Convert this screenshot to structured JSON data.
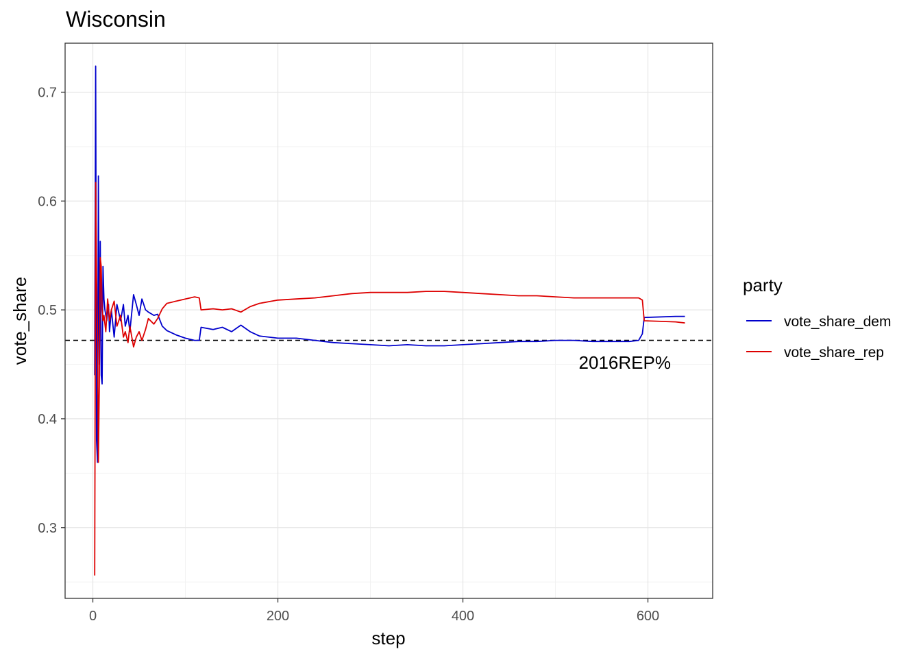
{
  "chart_data": {
    "type": "line",
    "title": "Wisconsin",
    "xlabel": "step",
    "ylabel": "vote_share",
    "xlim": [
      -30,
      670
    ],
    "ylim": [
      0.235,
      0.745
    ],
    "x_ticks": [
      0,
      200,
      400,
      600
    ],
    "y_ticks": [
      0.3,
      0.4,
      0.5,
      0.6,
      0.7
    ],
    "x_tick_labels": [
      "0",
      "200",
      "400",
      "600"
    ],
    "y_tick_labels": [
      "0.3",
      "0.4",
      "0.5",
      "0.6",
      "0.7"
    ],
    "grid": true,
    "legend": {
      "title": "party",
      "position": "right"
    },
    "reference_line": {
      "y": 0.472,
      "style": "dashed",
      "label": "2016REP%",
      "label_x": 575,
      "label_y": 0.446
    },
    "series": [
      {
        "name": "vote_share_dem",
        "color": "#0000CC",
        "points": [
          [
            2,
            0.44
          ],
          [
            3,
            0.724
          ],
          [
            4,
            0.38
          ],
          [
            5,
            0.36
          ],
          [
            6,
            0.623
          ],
          [
            7,
            0.45
          ],
          [
            8,
            0.563
          ],
          [
            9,
            0.44
          ],
          [
            10,
            0.432
          ],
          [
            11,
            0.54
          ],
          [
            12,
            0.51
          ],
          [
            13,
            0.5
          ],
          [
            15,
            0.49
          ],
          [
            17,
            0.505
          ],
          [
            18,
            0.48
          ],
          [
            20,
            0.5
          ],
          [
            23,
            0.475
          ],
          [
            26,
            0.505
          ],
          [
            30,
            0.49
          ],
          [
            33,
            0.505
          ],
          [
            35,
            0.485
          ],
          [
            38,
            0.495
          ],
          [
            40,
            0.48
          ],
          [
            44,
            0.514
          ],
          [
            47,
            0.505
          ],
          [
            50,
            0.495
          ],
          [
            53,
            0.51
          ],
          [
            57,
            0.5
          ],
          [
            60,
            0.498
          ],
          [
            66,
            0.495
          ],
          [
            70,
            0.496
          ],
          [
            75,
            0.485
          ],
          [
            80,
            0.481
          ],
          [
            90,
            0.477
          ],
          [
            100,
            0.474
          ],
          [
            110,
            0.472
          ],
          [
            115,
            0.472
          ],
          [
            117,
            0.484
          ],
          [
            130,
            0.482
          ],
          [
            140,
            0.484
          ],
          [
            150,
            0.48
          ],
          [
            160,
            0.486
          ],
          [
            170,
            0.48
          ],
          [
            180,
            0.476
          ],
          [
            200,
            0.474
          ],
          [
            220,
            0.474
          ],
          [
            240,
            0.472
          ],
          [
            260,
            0.47
          ],
          [
            280,
            0.469
          ],
          [
            300,
            0.468
          ],
          [
            320,
            0.467
          ],
          [
            340,
            0.468
          ],
          [
            360,
            0.467
          ],
          [
            380,
            0.467
          ],
          [
            400,
            0.468
          ],
          [
            420,
            0.469
          ],
          [
            440,
            0.47
          ],
          [
            460,
            0.471
          ],
          [
            480,
            0.471
          ],
          [
            500,
            0.472
          ],
          [
            520,
            0.472
          ],
          [
            540,
            0.471
          ],
          [
            560,
            0.471
          ],
          [
            580,
            0.471
          ],
          [
            590,
            0.472
          ],
          [
            594,
            0.478
          ],
          [
            596,
            0.493
          ],
          [
            630,
            0.494
          ],
          [
            640,
            0.494
          ]
        ]
      },
      {
        "name": "vote_share_rep",
        "color": "#DD0000",
        "points": [
          [
            2,
            0.256
          ],
          [
            3,
            0.617
          ],
          [
            4,
            0.53
          ],
          [
            5,
            0.48
          ],
          [
            6,
            0.36
          ],
          [
            7,
            0.43
          ],
          [
            8,
            0.548
          ],
          [
            9,
            0.54
          ],
          [
            10,
            0.5
          ],
          [
            11,
            0.49
          ],
          [
            12,
            0.495
          ],
          [
            14,
            0.48
          ],
          [
            16,
            0.51
          ],
          [
            18,
            0.49
          ],
          [
            20,
            0.5
          ],
          [
            23,
            0.508
          ],
          [
            26,
            0.485
          ],
          [
            30,
            0.495
          ],
          [
            33,
            0.475
          ],
          [
            35,
            0.48
          ],
          [
            38,
            0.47
          ],
          [
            40,
            0.485
          ],
          [
            44,
            0.466
          ],
          [
            47,
            0.475
          ],
          [
            50,
            0.48
          ],
          [
            53,
            0.472
          ],
          [
            57,
            0.482
          ],
          [
            60,
            0.492
          ],
          [
            66,
            0.487
          ],
          [
            70,
            0.492
          ],
          [
            75,
            0.501
          ],
          [
            80,
            0.506
          ],
          [
            90,
            0.508
          ],
          [
            100,
            0.51
          ],
          [
            110,
            0.512
          ],
          [
            115,
            0.511
          ],
          [
            117,
            0.5
          ],
          [
            130,
            0.501
          ],
          [
            140,
            0.5
          ],
          [
            150,
            0.501
          ],
          [
            160,
            0.498
          ],
          [
            170,
            0.503
          ],
          [
            180,
            0.506
          ],
          [
            200,
            0.509
          ],
          [
            220,
            0.51
          ],
          [
            240,
            0.511
          ],
          [
            260,
            0.513
          ],
          [
            280,
            0.515
          ],
          [
            300,
            0.516
          ],
          [
            320,
            0.516
          ],
          [
            340,
            0.516
          ],
          [
            360,
            0.517
          ],
          [
            380,
            0.517
          ],
          [
            400,
            0.516
          ],
          [
            420,
            0.515
          ],
          [
            440,
            0.514
          ],
          [
            460,
            0.513
          ],
          [
            480,
            0.513
          ],
          [
            500,
            0.512
          ],
          [
            520,
            0.511
          ],
          [
            540,
            0.511
          ],
          [
            560,
            0.511
          ],
          [
            580,
            0.511
          ],
          [
            590,
            0.511
          ],
          [
            594,
            0.509
          ],
          [
            596,
            0.49
          ],
          [
            630,
            0.489
          ],
          [
            640,
            0.488
          ]
        ]
      }
    ]
  }
}
